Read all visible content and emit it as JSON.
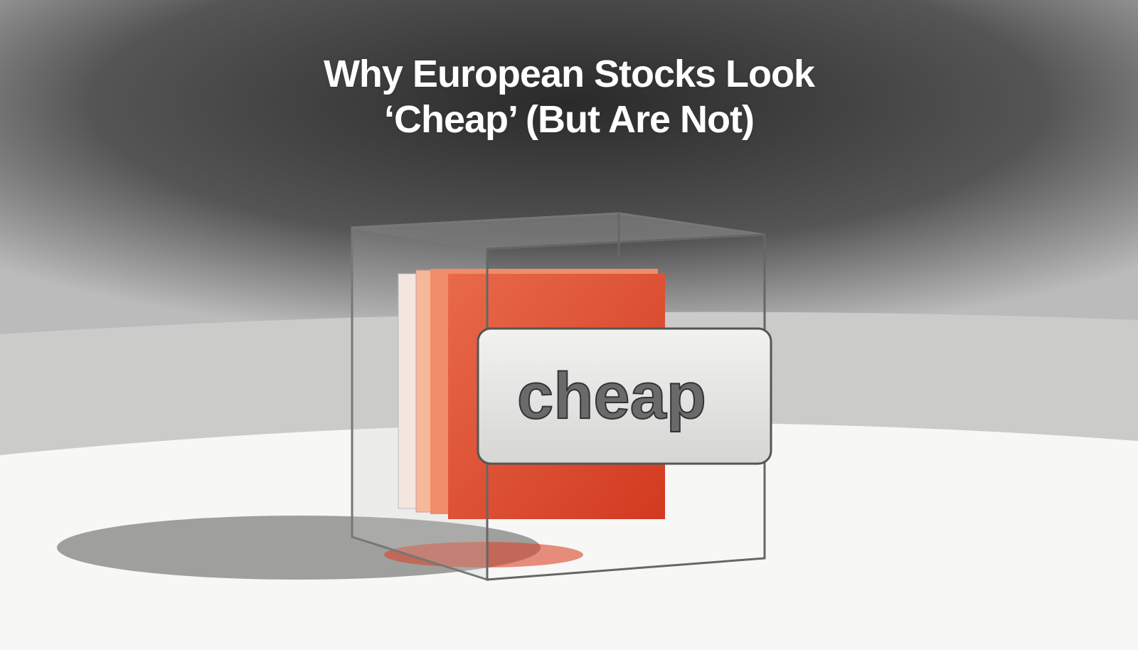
{
  "title": {
    "line1": "Why European Stocks Look",
    "line2": "‘Cheap’ (But Are Not)"
  },
  "label_plate": {
    "text": "cheap"
  },
  "colors": {
    "background": "#f7f7f5",
    "hatching": "#3a3a3a",
    "panel_red": "#e0502f",
    "panel_orange": "#f2a080",
    "plate": "#e8e8e6"
  }
}
